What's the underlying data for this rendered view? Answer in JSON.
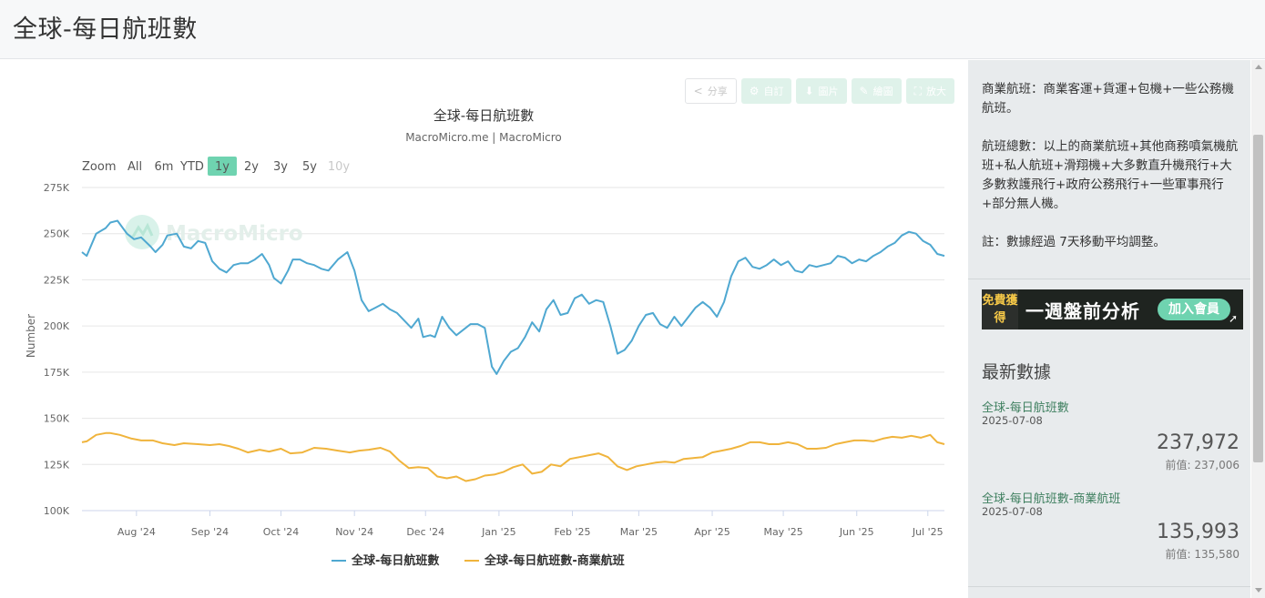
{
  "page": {
    "title": "全球-每日航班數"
  },
  "toolbar": {
    "share": "分享",
    "subscribe": "自訂",
    "image": "圖片",
    "draw": "繪圖",
    "expand": "放大"
  },
  "watermark": "MacroMicro",
  "zoom": {
    "label": "Zoom",
    "options": [
      "All",
      "6m",
      "YTD",
      "1y",
      "2y",
      "3y",
      "5y",
      "10y"
    ],
    "selected": "1y",
    "disabled": [
      "10y"
    ]
  },
  "chart_data": {
    "type": "line",
    "title": "全球-每日航班數",
    "subtitle": "MacroMicro.me | MacroMicro",
    "ylabel": "Number",
    "xlabel": "",
    "ylim": [
      100000,
      275000
    ],
    "yticks": [
      "100K",
      "125K",
      "150K",
      "175K",
      "200K",
      "225K",
      "250K",
      "275K"
    ],
    "xlim": [
      "2024-07-09",
      "2025-07-08"
    ],
    "xticks": [
      {
        "date": "2024-08-01",
        "label": "Aug '24"
      },
      {
        "date": "2024-09-01",
        "label": "Sep '24"
      },
      {
        "date": "2024-10-01",
        "label": "Oct '24"
      },
      {
        "date": "2024-11-01",
        "label": "Nov '24"
      },
      {
        "date": "2024-12-01",
        "label": "Dec '24"
      },
      {
        "date": "2025-01-01",
        "label": "Jan '25"
      },
      {
        "date": "2025-02-01",
        "label": "Feb '25"
      },
      {
        "date": "2025-03-01",
        "label": "Mar '25"
      },
      {
        "date": "2025-04-01",
        "label": "Apr '25"
      },
      {
        "date": "2025-05-01",
        "label": "May '25"
      },
      {
        "date": "2025-06-01",
        "label": "Jun '25"
      },
      {
        "date": "2025-07-01",
        "label": "Jul '25"
      }
    ],
    "grid": true,
    "legend": "bottom",
    "series": [
      {
        "name": "全球-每日航班數",
        "color": "#4fa8d1",
        "x": [
          "2024-07-09",
          "2024-07-11",
          "2024-07-15",
          "2024-07-19",
          "2024-07-21",
          "2024-07-24",
          "2024-07-28",
          "2024-07-31",
          "2024-08-03",
          "2024-08-07",
          "2024-08-09",
          "2024-08-12",
          "2024-08-14",
          "2024-08-18",
          "2024-08-21",
          "2024-08-24",
          "2024-08-27",
          "2024-08-30",
          "2024-09-02",
          "2024-09-05",
          "2024-09-08",
          "2024-09-11",
          "2024-09-14",
          "2024-09-17",
          "2024-09-20",
          "2024-09-23",
          "2024-09-26",
          "2024-09-28",
          "2024-10-01",
          "2024-10-04",
          "2024-10-06",
          "2024-10-09",
          "2024-10-12",
          "2024-10-15",
          "2024-10-18",
          "2024-10-21",
          "2024-10-25",
          "2024-10-29",
          "2024-11-01",
          "2024-11-04",
          "2024-11-07",
          "2024-11-10",
          "2024-11-13",
          "2024-11-16",
          "2024-11-19",
          "2024-11-22",
          "2024-11-25",
          "2024-11-28",
          "2024-11-30",
          "2024-12-03",
          "2024-12-05",
          "2024-12-08",
          "2024-12-11",
          "2024-12-14",
          "2024-12-17",
          "2024-12-20",
          "2024-12-23",
          "2024-12-26",
          "2024-12-29",
          "2024-12-31",
          "2025-01-03",
          "2025-01-06",
          "2025-01-09",
          "2025-01-12",
          "2025-01-15",
          "2025-01-18",
          "2025-01-21",
          "2025-01-24",
          "2025-01-27",
          "2025-01-30",
          "2025-02-02",
          "2025-02-05",
          "2025-02-08",
          "2025-02-11",
          "2025-02-14",
          "2025-02-17",
          "2025-02-20",
          "2025-02-23",
          "2025-02-26",
          "2025-03-01",
          "2025-03-04",
          "2025-03-07",
          "2025-03-10",
          "2025-03-13",
          "2025-03-16",
          "2025-03-19",
          "2025-03-22",
          "2025-03-25",
          "2025-03-28",
          "2025-03-31",
          "2025-04-03",
          "2025-04-06",
          "2025-04-09",
          "2025-04-12",
          "2025-04-15",
          "2025-04-18",
          "2025-04-21",
          "2025-04-24",
          "2025-04-27",
          "2025-04-30",
          "2025-05-03",
          "2025-05-06",
          "2025-05-09",
          "2025-05-12",
          "2025-05-15",
          "2025-05-18",
          "2025-05-21",
          "2025-05-24",
          "2025-05-27",
          "2025-05-30",
          "2025-06-02",
          "2025-06-05",
          "2025-06-08",
          "2025-06-11",
          "2025-06-14",
          "2025-06-17",
          "2025-06-20",
          "2025-06-23",
          "2025-06-26",
          "2025-06-29",
          "2025-07-02",
          "2025-07-05",
          "2025-07-08"
        ],
        "values": [
          240000,
          238000,
          250000,
          253000,
          256000,
          257000,
          250000,
          247000,
          248000,
          243000,
          240000,
          244000,
          249000,
          250000,
          243000,
          242000,
          246000,
          245000,
          235000,
          231000,
          229000,
          233000,
          234000,
          234000,
          236000,
          239000,
          233000,
          226000,
          223000,
          230000,
          236000,
          236000,
          234000,
          233000,
          231000,
          230000,
          236000,
          240000,
          230000,
          214000,
          208000,
          210000,
          212000,
          209000,
          207000,
          203000,
          199000,
          204000,
          194000,
          195000,
          194000,
          205000,
          199000,
          195000,
          198000,
          201000,
          201000,
          199000,
          178000,
          174000,
          181000,
          186000,
          188000,
          194000,
          202000,
          197000,
          209000,
          214000,
          206000,
          207000,
          215000,
          217000,
          212000,
          214000,
          213000,
          200000,
          185000,
          187000,
          192000,
          200000,
          206000,
          207000,
          201000,
          199000,
          205000,
          200000,
          205000,
          210000,
          213000,
          210000,
          205000,
          213000,
          227000,
          235000,
          237000,
          232000,
          231000,
          233000,
          236000,
          233000,
          235000,
          230000,
          229000,
          233000,
          232000,
          233000,
          234000,
          238000,
          237000,
          234000,
          236000,
          235000,
          238000,
          240000,
          243000,
          245000,
          249000,
          251000,
          250000,
          246000,
          244000,
          239000,
          237972
        ]
      },
      {
        "name": "全球-每日航班數-商業航班",
        "color": "#f0b43c",
        "x": [
          "2024-07-09",
          "2024-07-11",
          "2024-07-15",
          "2024-07-19",
          "2024-07-21",
          "2024-07-25",
          "2024-07-30",
          "2024-08-03",
          "2024-08-08",
          "2024-08-12",
          "2024-08-17",
          "2024-08-21",
          "2024-08-27",
          "2024-09-01",
          "2024-09-05",
          "2024-09-09",
          "2024-09-13",
          "2024-09-17",
          "2024-09-22",
          "2024-09-26",
          "2024-10-01",
          "2024-10-05",
          "2024-10-10",
          "2024-10-15",
          "2024-10-20",
          "2024-10-25",
          "2024-10-30",
          "2024-11-03",
          "2024-11-07",
          "2024-11-12",
          "2024-11-16",
          "2024-11-20",
          "2024-11-24",
          "2024-11-28",
          "2024-12-02",
          "2024-12-06",
          "2024-12-10",
          "2024-12-14",
          "2024-12-18",
          "2024-12-22",
          "2024-12-26",
          "2024-12-30",
          "2025-01-03",
          "2025-01-07",
          "2025-01-11",
          "2025-01-15",
          "2025-01-19",
          "2025-01-23",
          "2025-01-27",
          "2025-01-31",
          "2025-02-04",
          "2025-02-08",
          "2025-02-12",
          "2025-02-16",
          "2025-02-20",
          "2025-02-24",
          "2025-02-28",
          "2025-03-04",
          "2025-03-08",
          "2025-03-12",
          "2025-03-16",
          "2025-03-20",
          "2025-03-24",
          "2025-03-28",
          "2025-04-01",
          "2025-04-05",
          "2025-04-09",
          "2025-04-13",
          "2025-04-17",
          "2025-04-21",
          "2025-04-25",
          "2025-04-29",
          "2025-05-03",
          "2025-05-07",
          "2025-05-11",
          "2025-05-15",
          "2025-05-19",
          "2025-05-23",
          "2025-05-27",
          "2025-05-31",
          "2025-06-04",
          "2025-06-08",
          "2025-06-12",
          "2025-06-16",
          "2025-06-20",
          "2025-06-24",
          "2025-06-28",
          "2025-07-02",
          "2025-07-05",
          "2025-07-08"
        ],
        "values": [
          137000,
          137500,
          141000,
          142000,
          142000,
          141000,
          139000,
          138000,
          138000,
          136500,
          135500,
          136500,
          136000,
          135500,
          136000,
          135000,
          133500,
          131500,
          133000,
          132000,
          133500,
          131000,
          131500,
          134000,
          133500,
          132500,
          131500,
          132500,
          133000,
          134000,
          132000,
          127000,
          123000,
          123500,
          123000,
          118500,
          117500,
          118500,
          116000,
          117000,
          119000,
          119500,
          121000,
          123500,
          125000,
          120000,
          121000,
          125000,
          124000,
          128000,
          129000,
          130000,
          131000,
          129000,
          124000,
          122000,
          124000,
          125000,
          126000,
          126500,
          126000,
          128000,
          128500,
          129000,
          131500,
          132500,
          133500,
          135000,
          137000,
          137000,
          136000,
          136000,
          137000,
          136000,
          133500,
          133500,
          134000,
          136000,
          137000,
          138000,
          138000,
          137500,
          139000,
          140000,
          139500,
          140500,
          139500,
          141000,
          137000,
          135993
        ]
      }
    ],
    "legend_entries": [
      "全球-每日航班數",
      "全球-每日航班數-商業航班"
    ]
  },
  "sidebar": {
    "note1": "商業航班：商業客運+貨運+包機+一些公務機航班。",
    "note2": "航班總數：以上的商業航班+其他商務噴氣機航班+私人航班+滑翔機+大多數直升機飛行+大多數救護飛行+政府公務飛行+一些軍事飛行+部分無人機。",
    "note3": "註：數據經過 7天移動平均調整。",
    "banner": {
      "tag": "免費獲得",
      "text": "一週盤前分析",
      "cta": "加入會員"
    },
    "latest_title": "最新數據",
    "items": [
      {
        "name": "全球-每日航班數",
        "date": "2025-07-08",
        "value": "237,972",
        "prev": "前值: 237,006"
      },
      {
        "name": "全球-每日航班數-商業航班",
        "date": "2025-07-08",
        "value": "135,993",
        "prev": "前值: 135,580"
      }
    ]
  },
  "colors": {
    "accent": "#6fd3b0",
    "series1": "#4fa8d1",
    "series2": "#f0b43c",
    "sidebar_bg": "#e8ebed"
  }
}
